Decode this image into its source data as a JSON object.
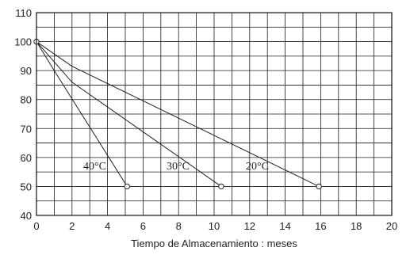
{
  "chart_data": {
    "type": "line",
    "xlabel": "Tiempo de Almacenamiento : meses",
    "ylabel": "",
    "xlim": [
      0,
      20
    ],
    "ylim": [
      40,
      110
    ],
    "xticks": [
      0,
      2,
      4,
      6,
      8,
      10,
      12,
      14,
      16,
      18,
      20
    ],
    "yticks": [
      40,
      50,
      60,
      70,
      80,
      90,
      100,
      110
    ],
    "x_minor_step": 1,
    "y_minor_step": 5,
    "grid": true,
    "series": [
      {
        "name": "40°C",
        "x": [
          0,
          1,
          5.1
        ],
        "y": [
          100,
          90,
          50
        ]
      },
      {
        "name": "30°C",
        "x": [
          0,
          2,
          10.4
        ],
        "y": [
          100,
          86,
          50
        ]
      },
      {
        "name": "20°C",
        "x": [
          0,
          2,
          15.9
        ],
        "y": [
          100,
          91.5,
          50
        ]
      }
    ],
    "markers": [
      {
        "x": 0,
        "y": 100
      },
      {
        "x": 5.1,
        "y": 50
      },
      {
        "x": 10.4,
        "y": 50
      },
      {
        "x": 15.9,
        "y": 50
      }
    ]
  }
}
